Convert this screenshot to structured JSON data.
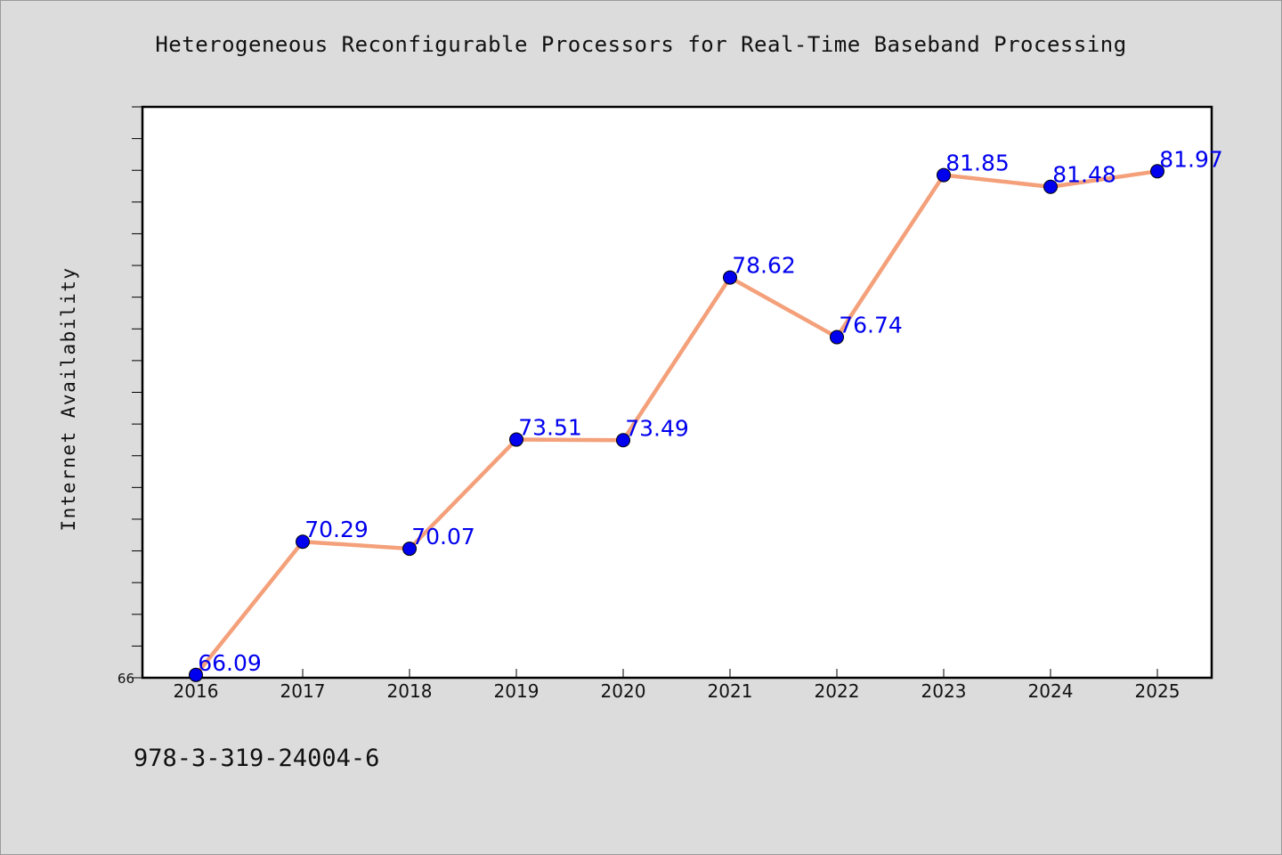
{
  "chart_data": {
    "type": "line",
    "title": "Heterogeneous Reconfigurable Processors for Real-Time Baseband Processing",
    "xlabel": "",
    "ylabel": "Internet Availability",
    "categories": [
      "2016",
      "2017",
      "2018",
      "2019",
      "2020",
      "2021",
      "2022",
      "2023",
      "2024",
      "2025"
    ],
    "series": [
      {
        "values": [
          66.09,
          70.29,
          70.07,
          73.51,
          73.49,
          78.62,
          76.74,
          81.85,
          81.48,
          81.97
        ],
        "labels": [
          "66.09",
          "70.29",
          "70.07",
          "73.51",
          "73.49",
          "78.62",
          "76.74",
          "81.85",
          "81.48",
          "81.97"
        ]
      }
    ],
    "ylim": [
      66,
      84
    ],
    "ytick_labels": [
      "66"
    ],
    "grid": false,
    "colors": {
      "line": "#f4a07a",
      "marker": "#0000ee",
      "data_label": "#0000ee"
    }
  },
  "footer": {
    "isbn": "978-3-319-24004-6"
  }
}
